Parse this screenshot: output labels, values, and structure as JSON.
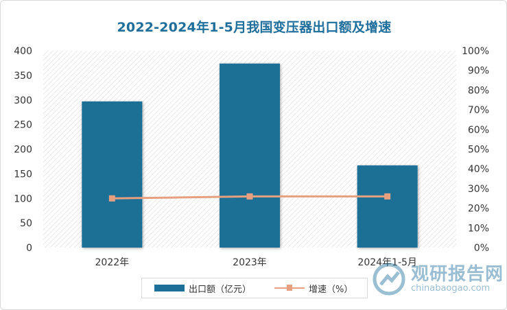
{
  "chart_data": {
    "type": "bar",
    "title": "2022-2024年1-5月我国变压器出口额及增速",
    "categories": [
      "2022年",
      "2023年",
      "2024年1-5月"
    ],
    "series": [
      {
        "name": "出口额（亿元）",
        "type": "bar",
        "axis": "left",
        "values": [
          297,
          374,
          167
        ],
        "color": "#1c6f96"
      },
      {
        "name": "增速（%）",
        "type": "line",
        "axis": "right",
        "values": [
          25,
          26,
          26
        ],
        "color": "#e6a07f"
      }
    ],
    "y_left": {
      "min": 0,
      "max": 400,
      "ticks": [
        "0",
        "50",
        "100",
        "150",
        "200",
        "250",
        "300",
        "350",
        "400"
      ]
    },
    "y_right": {
      "min": 0,
      "max": 100,
      "ticks": [
        "0%",
        "10%",
        "20%",
        "30%",
        "40%",
        "50%",
        "60%",
        "70%",
        "80%",
        "90%",
        "100%"
      ]
    },
    "grid": false,
    "legend": "bottom"
  },
  "watermark": {
    "name_cn": "观研报告网",
    "url": "chinabaogao.com"
  }
}
